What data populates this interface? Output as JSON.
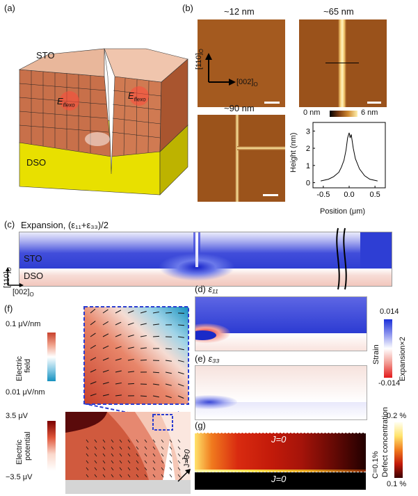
{
  "panels": {
    "a": {
      "label": "(a)",
      "sto": "STO",
      "dso": "DSO",
      "eflexo_left": "E",
      "eflexo_left_sub": "flexo",
      "eflexo_right": "E",
      "eflexo_right_sub": "flexo"
    },
    "b": {
      "label": "(b)",
      "img1_title": "~12 nm",
      "img2_title": "~65 nm",
      "img3_title": "~90 nm",
      "axis_110": "[110]",
      "axis_110_sub": "O",
      "axis_002": "[002]",
      "axis_002_sub": "O",
      "colorbar_min": "0 nm",
      "colorbar_max": "6 nm",
      "profile": {
        "ylabel": "Height (nm)",
        "xlabel": "Position (μm)",
        "yticks": [
          "3",
          "2",
          "1",
          "0"
        ],
        "xticks": [
          "-0.5",
          "0.0",
          "0.5"
        ],
        "x": [
          -0.55,
          -0.4,
          -0.3,
          -0.2,
          -0.15,
          -0.1,
          -0.06,
          -0.03,
          0.0,
          0.02,
          0.04,
          0.08,
          0.12,
          0.2,
          0.3,
          0.4,
          0.55
        ],
        "y": [
          0.1,
          0.2,
          0.35,
          0.6,
          0.9,
          1.3,
          1.9,
          2.6,
          2.9,
          2.6,
          2.8,
          2.0,
          1.4,
          0.8,
          0.4,
          0.2,
          0.1
        ]
      }
    },
    "c": {
      "label": "(c)",
      "title": "Expansion,",
      "formula": "(ε₁₁+ε₃₃)/2",
      "sto": "STO",
      "dso": "DSO",
      "axis_110": "[110]",
      "axis_110_sub": "O",
      "axis_002": "[002]",
      "axis_002_sub": "O"
    },
    "d": {
      "label": "(d)",
      "title": "ε₁₁"
    },
    "e": {
      "label": "(e)",
      "title": "ε₃₃"
    },
    "strain_bar": {
      "max": "0.014",
      "min": "-0.014",
      "label": "Strain",
      "label2": "Expansion×2"
    },
    "f": {
      "label": "(f)",
      "field_max": "0.1 μV/nm",
      "field_min": "0.01 μV/nm",
      "field_label1": "Electric",
      "field_label2": "field",
      "pot_max": "3.5 μV",
      "pot_min": "−3.5 μV",
      "pot_label1": "Electric",
      "pot_label2": "potential",
      "j0": "J=0"
    },
    "g": {
      "label": "(g)",
      "j_top": "J=0",
      "j_bottom": "J=0",
      "c_label": "C=0.1%",
      "bar_max": "0.2 %",
      "bar_min": "0.1 %",
      "bar_label1": "Defect concentration"
    }
  },
  "colors": {
    "sto_face": "#c8704a",
    "dso": "#e8e000",
    "afm_brown": "#a0561c",
    "strain_blue": "#2b3ccf",
    "strain_red": "#e31a1c",
    "defect_dark": "#1a0000"
  }
}
